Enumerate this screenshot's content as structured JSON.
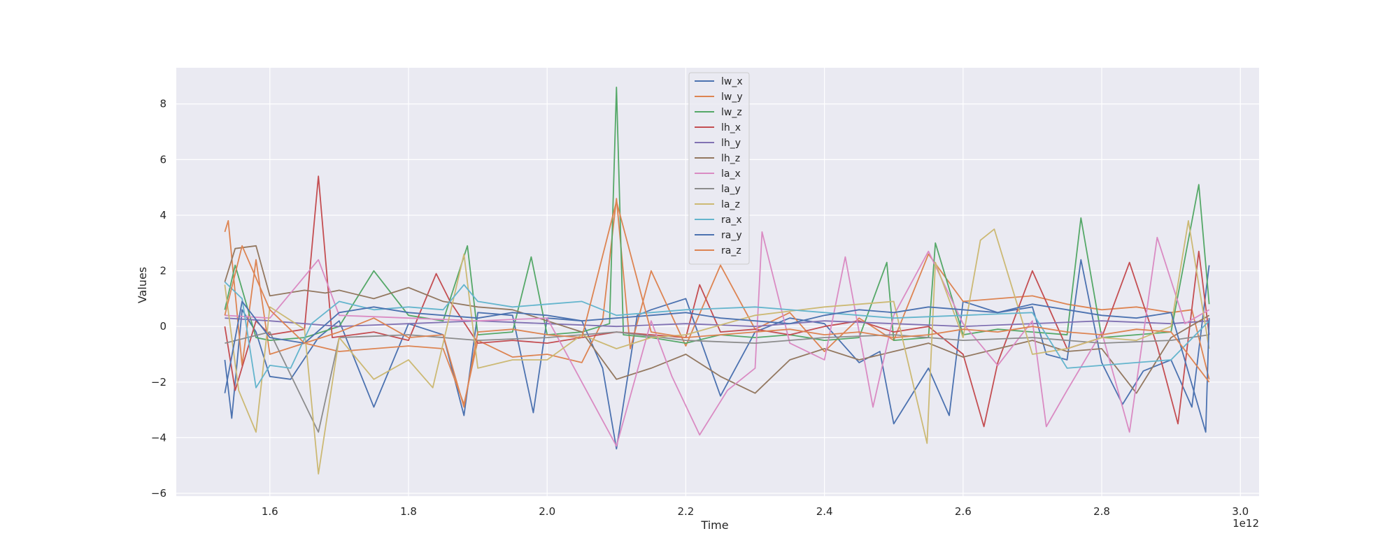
{
  "chart_data": {
    "type": "line",
    "title": "",
    "xlabel": "Time",
    "ylabel": "Values",
    "x_offset_label": "1e12",
    "xlim": [
      1.465,
      3.027
    ],
    "ylim": [
      -6.1,
      9.3
    ],
    "x_ticks": [
      1.6,
      1.8,
      2.0,
      2.2,
      2.4,
      2.6,
      2.8,
      3.0
    ],
    "x_tick_labels": [
      "1.6",
      "1.8",
      "2.0",
      "2.2",
      "2.4",
      "2.6",
      "2.8",
      "3.0"
    ],
    "y_ticks": [
      -6,
      -4,
      -2,
      0,
      2,
      4,
      6,
      8
    ],
    "y_tick_labels": [
      "−6",
      "−4",
      "−2",
      "0",
      "2",
      "4",
      "6",
      "8"
    ],
    "grid": true,
    "legend_position": "top-center",
    "colors": {
      "background": "#eaeaf2",
      "grid": "#ffffff"
    },
    "series": [
      {
        "name": "lw_x",
        "color": "#4c72b0",
        "x": [
          1.535,
          1.545,
          1.56,
          1.58,
          1.6,
          1.63,
          1.67,
          1.7,
          1.75,
          1.8,
          1.85,
          1.88,
          1.9,
          1.95,
          1.98,
          2.0,
          2.05,
          2.08,
          2.1,
          2.13,
          2.15,
          2.2,
          2.25,
          2.3,
          2.35,
          2.4,
          2.45,
          2.48,
          2.5,
          2.55,
          2.58,
          2.6,
          2.65,
          2.7,
          2.72,
          2.75,
          2.77,
          2.8,
          2.83,
          2.86,
          2.9,
          2.93,
          2.955
        ],
        "y": [
          -1.2,
          -3.3,
          0.6,
          -0.2,
          -1.8,
          -1.9,
          -0.4,
          0.2,
          -2.9,
          0.1,
          -0.3,
          -3.2,
          0.5,
          0.4,
          -3.1,
          0.3,
          0.2,
          -1.5,
          -4.4,
          0.4,
          0.6,
          1.0,
          -2.5,
          -0.2,
          0.3,
          0.1,
          -1.3,
          -0.9,
          -3.5,
          -1.5,
          -3.2,
          0.9,
          0.5,
          0.7,
          -1.0,
          -1.2,
          2.4,
          -1.3,
          -2.8,
          -1.6,
          -1.2,
          -2.9,
          2.2
        ]
      },
      {
        "name": "lw_y",
        "color": "#dd8452",
        "x": [
          1.535,
          1.54,
          1.55,
          1.56,
          1.58,
          1.6,
          1.65,
          1.7,
          1.75,
          1.8,
          1.85,
          1.88,
          1.9,
          1.95,
          2.0,
          2.05,
          2.08,
          2.1,
          2.12,
          2.15,
          2.2,
          2.25,
          2.3,
          2.35,
          2.4,
          2.45,
          2.5,
          2.55,
          2.6,
          2.65,
          2.7,
          2.75,
          2.8,
          2.85,
          2.9,
          2.93,
          2.955
        ],
        "y": [
          3.4,
          3.8,
          1.2,
          -1.4,
          2.4,
          -1.0,
          -0.6,
          -0.9,
          -0.8,
          -0.7,
          -0.8,
          -2.8,
          -0.5,
          -1.1,
          -1.0,
          -1.3,
          0.2,
          4.6,
          -0.8,
          2.0,
          -0.7,
          2.2,
          -0.1,
          0.5,
          -0.9,
          0.3,
          -0.5,
          2.6,
          0.9,
          1.0,
          1.1,
          0.8,
          0.6,
          0.7,
          0.5,
          0.6,
          -1.9
        ]
      },
      {
        "name": "lw_z",
        "color": "#55a868",
        "x": [
          1.535,
          1.55,
          1.58,
          1.6,
          1.65,
          1.7,
          1.75,
          1.8,
          1.85,
          1.885,
          1.9,
          1.95,
          1.977,
          2.0,
          2.05,
          2.09,
          2.1,
          2.11,
          2.15,
          2.2,
          2.25,
          2.3,
          2.35,
          2.4,
          2.45,
          2.49,
          2.5,
          2.55,
          2.56,
          2.6,
          2.65,
          2.7,
          2.75,
          2.77,
          2.8,
          2.85,
          2.9,
          2.94,
          2.955
        ],
        "y": [
          0.6,
          2.2,
          -0.4,
          -0.5,
          -0.4,
          0.0,
          2.0,
          0.4,
          0.2,
          2.9,
          -0.3,
          -0.2,
          2.5,
          -0.3,
          -0.2,
          0.1,
          8.6,
          -0.3,
          -0.4,
          -0.6,
          -0.3,
          -0.4,
          -0.3,
          -0.5,
          -0.4,
          2.3,
          -0.5,
          -0.4,
          3.0,
          -0.3,
          -0.1,
          -0.2,
          -0.3,
          3.9,
          -0.4,
          -0.3,
          -0.2,
          5.1,
          0.8
        ]
      },
      {
        "name": "lh_x",
        "color": "#c44e52",
        "x": [
          1.535,
          1.55,
          1.58,
          1.6,
          1.65,
          1.67,
          1.69,
          1.75,
          1.8,
          1.84,
          1.86,
          1.9,
          1.95,
          2.0,
          2.05,
          2.1,
          2.15,
          2.2,
          2.22,
          2.25,
          2.3,
          2.35,
          2.4,
          2.45,
          2.5,
          2.55,
          2.6,
          2.63,
          2.65,
          2.7,
          2.75,
          2.8,
          2.84,
          2.88,
          2.91,
          2.94,
          2.955
        ],
        "y": [
          0.0,
          -2.3,
          0.2,
          -0.3,
          -0.1,
          5.4,
          -0.4,
          -0.2,
          -0.5,
          1.9,
          0.9,
          -0.6,
          -0.5,
          -0.6,
          -0.4,
          -0.2,
          -0.3,
          -0.4,
          1.5,
          -0.2,
          -0.1,
          -0.3,
          0.0,
          0.2,
          -0.2,
          0.0,
          -1.0,
          -3.6,
          -1.3,
          2.0,
          -0.8,
          -0.4,
          2.3,
          -0.7,
          -3.5,
          2.7,
          -0.3
        ]
      },
      {
        "name": "lh_y",
        "color": "#8172b3",
        "x": [
          1.535,
          1.6,
          1.7,
          1.8,
          1.9,
          2.0,
          2.1,
          2.2,
          2.3,
          2.4,
          2.5,
          2.6,
          2.7,
          2.8,
          2.9,
          2.955
        ],
        "y": [
          0.3,
          0.2,
          0.0,
          0.1,
          0.2,
          0.1,
          0.0,
          0.1,
          0.0,
          0.2,
          0.1,
          0.0,
          0.1,
          0.2,
          0.1,
          0.2
        ]
      },
      {
        "name": "lh_z",
        "color": "#937860",
        "x": [
          1.535,
          1.55,
          1.58,
          1.6,
          1.65,
          1.68,
          1.7,
          1.75,
          1.8,
          1.85,
          1.9,
          1.95,
          2.0,
          2.05,
          2.1,
          2.15,
          2.2,
          2.25,
          2.3,
          2.35,
          2.4,
          2.45,
          2.5,
          2.55,
          2.6,
          2.65,
          2.7,
          2.75,
          2.8,
          2.85,
          2.9,
          2.955
        ],
        "y": [
          1.6,
          2.8,
          2.9,
          1.1,
          1.3,
          1.2,
          1.3,
          1.0,
          1.4,
          0.9,
          0.7,
          0.6,
          0.2,
          -0.2,
          -1.9,
          -1.5,
          -1.0,
          -1.8,
          -2.4,
          -1.2,
          -0.8,
          -1.2,
          -0.9,
          -0.6,
          -1.1,
          -0.8,
          -0.5,
          -0.9,
          -0.8,
          -2.4,
          -0.4,
          0.4
        ]
      },
      {
        "name": "la_x",
        "color": "#da8bc3",
        "x": [
          1.535,
          1.6,
          1.67,
          1.7,
          1.8,
          1.9,
          2.0,
          2.1,
          2.15,
          2.18,
          2.22,
          2.26,
          2.3,
          2.31,
          2.35,
          2.4,
          2.43,
          2.47,
          2.5,
          2.55,
          2.6,
          2.65,
          2.7,
          2.72,
          2.75,
          2.8,
          2.84,
          2.88,
          2.92,
          2.955
        ],
        "y": [
          0.4,
          0.3,
          2.4,
          0.4,
          0.3,
          0.2,
          0.3,
          -4.3,
          0.2,
          -1.8,
          -3.9,
          -2.3,
          -1.5,
          3.4,
          -0.6,
          -1.2,
          2.5,
          -2.9,
          0.4,
          2.7,
          0.1,
          -1.4,
          0.2,
          -3.6,
          -2.3,
          -0.2,
          -3.8,
          3.2,
          0.1,
          0.6
        ]
      },
      {
        "name": "la_y",
        "color": "#8c8c8c",
        "x": [
          1.535,
          1.6,
          1.67,
          1.7,
          1.8,
          1.9,
          2.0,
          2.1,
          2.2,
          2.3,
          2.4,
          2.5,
          2.6,
          2.7,
          2.8,
          2.9,
          2.955
        ],
        "y": [
          -0.6,
          -0.2,
          -3.8,
          -0.4,
          -0.3,
          -0.5,
          -0.4,
          -0.2,
          -0.5,
          -0.6,
          -0.4,
          -0.3,
          -0.5,
          -0.4,
          -0.6,
          -0.5,
          -0.3
        ]
      },
      {
        "name": "la_z",
        "color": "#ccb974",
        "x": [
          1.535,
          1.555,
          1.58,
          1.6,
          1.65,
          1.67,
          1.7,
          1.75,
          1.8,
          1.835,
          1.88,
          1.9,
          1.95,
          2.0,
          2.05,
          2.1,
          2.15,
          2.2,
          2.3,
          2.4,
          2.5,
          2.548,
          2.56,
          2.6,
          2.625,
          2.645,
          2.7,
          2.75,
          2.8,
          2.85,
          2.9,
          2.925,
          2.955
        ],
        "y": [
          1.5,
          -2.3,
          -3.8,
          0.7,
          -0.1,
          -5.3,
          -0.4,
          -1.9,
          -1.2,
          -2.2,
          2.6,
          -1.5,
          -1.2,
          -1.2,
          -0.3,
          -0.8,
          -0.4,
          -0.3,
          0.4,
          0.7,
          0.9,
          -4.2,
          2.3,
          -0.4,
          3.1,
          3.5,
          -1.0,
          -0.8,
          -0.4,
          -0.5,
          0.0,
          3.8,
          -0.8
        ]
      },
      {
        "name": "ra_x",
        "color": "#64b5cd",
        "x": [
          1.535,
          1.56,
          1.58,
          1.6,
          1.63,
          1.66,
          1.7,
          1.75,
          1.8,
          1.85,
          1.88,
          1.9,
          1.95,
          2.0,
          2.05,
          2.1,
          2.15,
          2.2,
          2.3,
          2.4,
          2.5,
          2.6,
          2.7,
          2.75,
          2.8,
          2.85,
          2.9,
          2.955
        ],
        "y": [
          1.6,
          1.0,
          -2.2,
          -1.4,
          -1.5,
          0.1,
          0.9,
          0.6,
          0.7,
          0.6,
          1.5,
          0.9,
          0.7,
          0.8,
          0.9,
          0.4,
          0.5,
          0.6,
          0.7,
          0.5,
          0.3,
          0.4,
          0.5,
          -1.5,
          -1.4,
          -1.3,
          -1.2,
          0.2
        ]
      },
      {
        "name": "ra_y",
        "color": "#4c72b0",
        "x": [
          1.535,
          1.56,
          1.6,
          1.65,
          1.7,
          1.75,
          1.8,
          1.85,
          1.9,
          1.95,
          2.0,
          2.05,
          2.1,
          2.15,
          2.2,
          2.25,
          2.3,
          2.35,
          2.4,
          2.45,
          2.5,
          2.55,
          2.6,
          2.65,
          2.7,
          2.75,
          2.8,
          2.85,
          2.9,
          2.95,
          2.955
        ],
        "y": [
          -2.4,
          0.9,
          -0.4,
          -0.6,
          0.5,
          0.7,
          0.5,
          0.4,
          0.3,
          0.5,
          0.4,
          0.2,
          0.3,
          0.4,
          0.5,
          0.3,
          0.2,
          0.1,
          0.4,
          0.6,
          0.5,
          0.7,
          0.6,
          0.5,
          0.8,
          0.6,
          0.4,
          0.3,
          0.5,
          -3.8,
          0.3
        ]
      },
      {
        "name": "ra_z",
        "color": "#dd8452",
        "x": [
          1.535,
          1.56,
          1.6,
          1.65,
          1.7,
          1.75,
          1.8,
          1.85,
          1.88,
          1.9,
          1.95,
          2.0,
          2.05,
          2.1,
          2.15,
          2.2,
          2.25,
          2.3,
          2.35,
          2.4,
          2.45,
          2.5,
          2.55,
          2.6,
          2.65,
          2.7,
          2.75,
          2.8,
          2.85,
          2.9,
          2.955
        ],
        "y": [
          0.4,
          2.9,
          0.6,
          -0.6,
          -0.2,
          0.3,
          -0.4,
          -0.3,
          -2.9,
          -0.2,
          -0.1,
          -0.3,
          -0.4,
          4.5,
          -0.2,
          -0.4,
          -0.3,
          -0.2,
          -0.1,
          -0.3,
          -0.2,
          -0.4,
          -0.3,
          -0.1,
          -0.2,
          0.0,
          -0.2,
          -0.3,
          -0.1,
          -0.2,
          -2.0
        ]
      }
    ]
  }
}
